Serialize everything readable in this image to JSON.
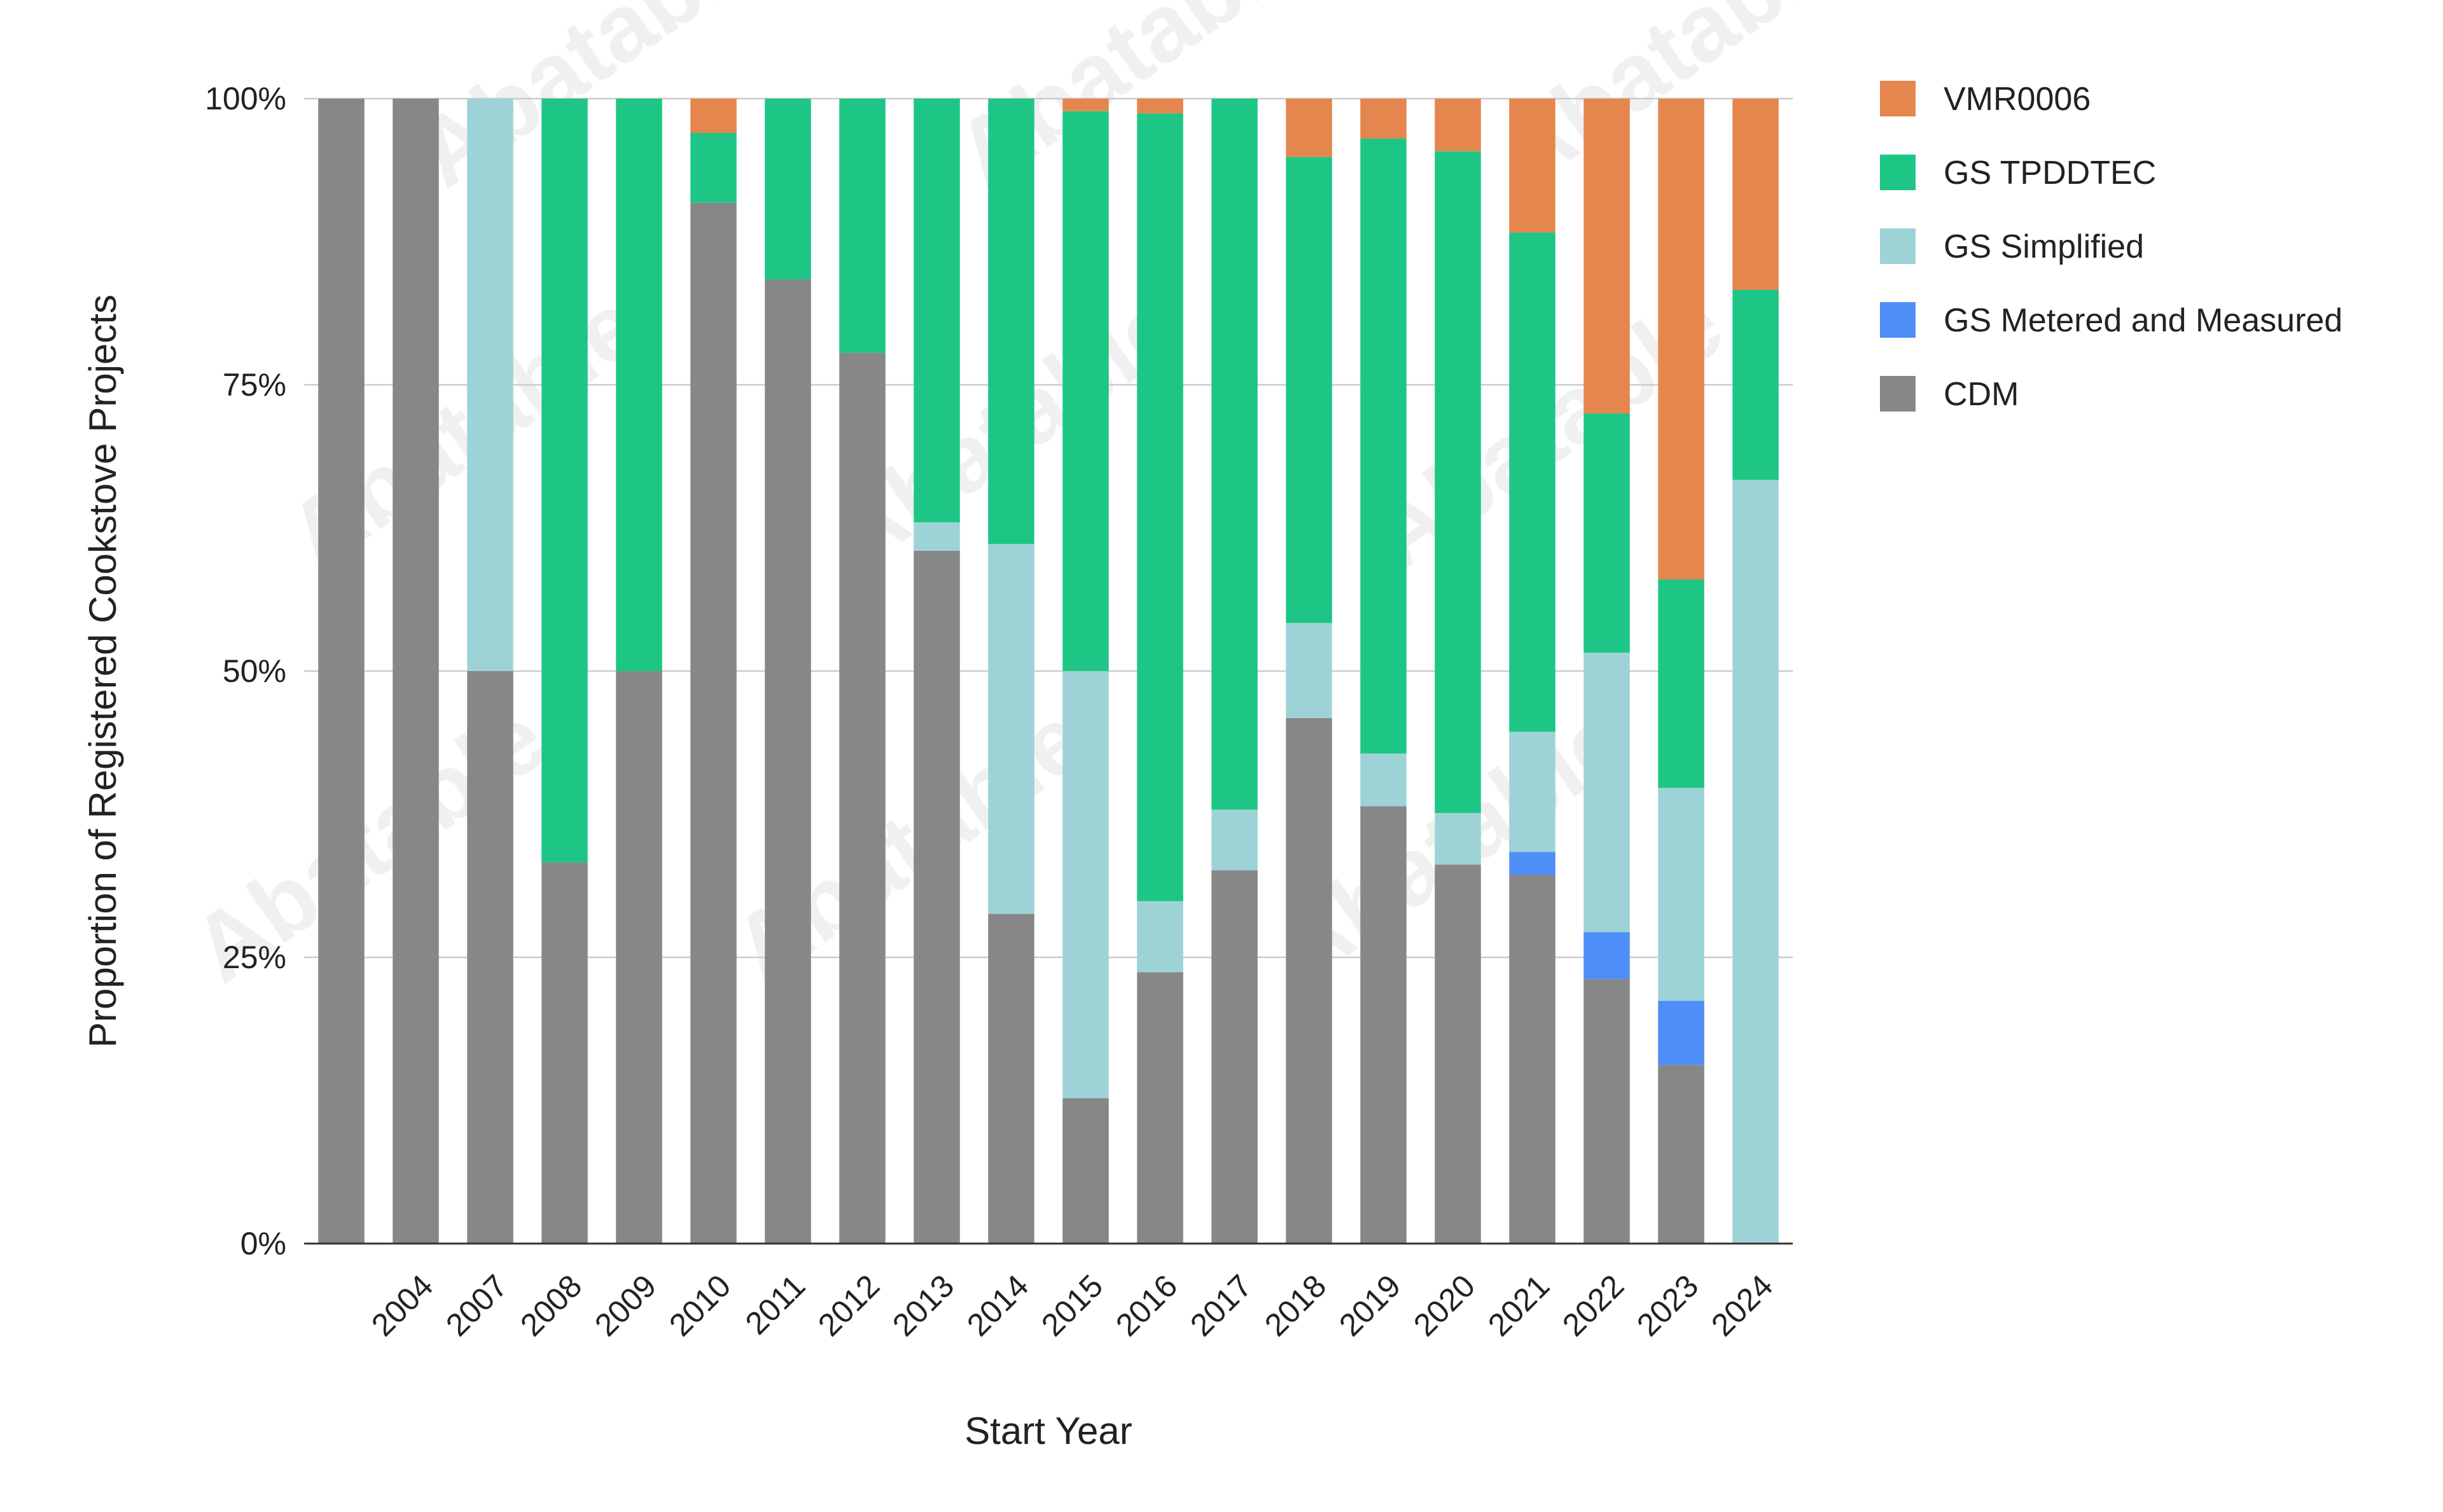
{
  "chart_data": {
    "type": "bar",
    "stacked": true,
    "normalized": true,
    "title": "",
    "xlabel": "Start Year",
    "ylabel": "Proportion of Registered Cookstove Projects",
    "ylim": [
      0,
      100
    ],
    "yticks": [
      "0%",
      "25%",
      "50%",
      "75%",
      "100%"
    ],
    "grid": true,
    "legend_position": "right",
    "watermark": "Abatable",
    "categories": [
      "",
      "2004",
      "2007",
      "2008",
      "2009",
      "2010",
      "2011",
      "2012",
      "2013",
      "2014",
      "2015",
      "2016",
      "2017",
      "2018",
      "2019",
      "2020",
      "2021",
      "2022",
      "2023",
      "2024"
    ],
    "series": [
      {
        "name": "CDM",
        "color": "#878787",
        "values": [
          100,
          100,
          50,
          33.3,
          50,
          90.9,
          84.2,
          77.8,
          60.5,
          28.8,
          12.7,
          23.7,
          32.6,
          45.9,
          38.2,
          33.1,
          32.2,
          23.1,
          15.6,
          0
        ]
      },
      {
        "name": "GS Metered and Measured",
        "color": "#4f8ef7",
        "values": [
          0,
          0,
          0,
          0,
          0,
          0,
          0,
          0,
          0,
          0,
          0,
          0,
          0,
          0,
          0,
          0,
          2.0,
          4.1,
          5.6,
          0
        ]
      },
      {
        "name": "GS Simplified",
        "color": "#9dd3d6",
        "values": [
          0,
          0,
          50,
          0,
          0,
          0,
          0,
          0,
          2.5,
          32.3,
          37.3,
          6.2,
          5.3,
          8.3,
          4.6,
          4.5,
          10.5,
          24.4,
          18.6,
          66.7
        ]
      },
      {
        "name": "GS TPDDTEC",
        "color": "#1ec686",
        "values": [
          0,
          0,
          0,
          66.7,
          50,
          6.1,
          15.8,
          22.2,
          37.0,
          38.9,
          48.9,
          68.8,
          62.1,
          40.7,
          53.7,
          57.8,
          43.6,
          20.9,
          18.2,
          16.6
        ]
      },
      {
        "name": "VMR0006",
        "color": "#e5864e",
        "values": [
          0,
          0,
          0,
          0,
          0,
          3.0,
          0,
          0,
          0,
          0,
          1.1,
          1.3,
          0,
          5.1,
          3.5,
          4.6,
          11.7,
          27.5,
          42.0,
          16.7
        ]
      }
    ],
    "legend_order": [
      "VMR0006",
      "GS TPDDTEC",
      "GS Simplified",
      "GS Metered and Measured",
      "CDM"
    ]
  }
}
